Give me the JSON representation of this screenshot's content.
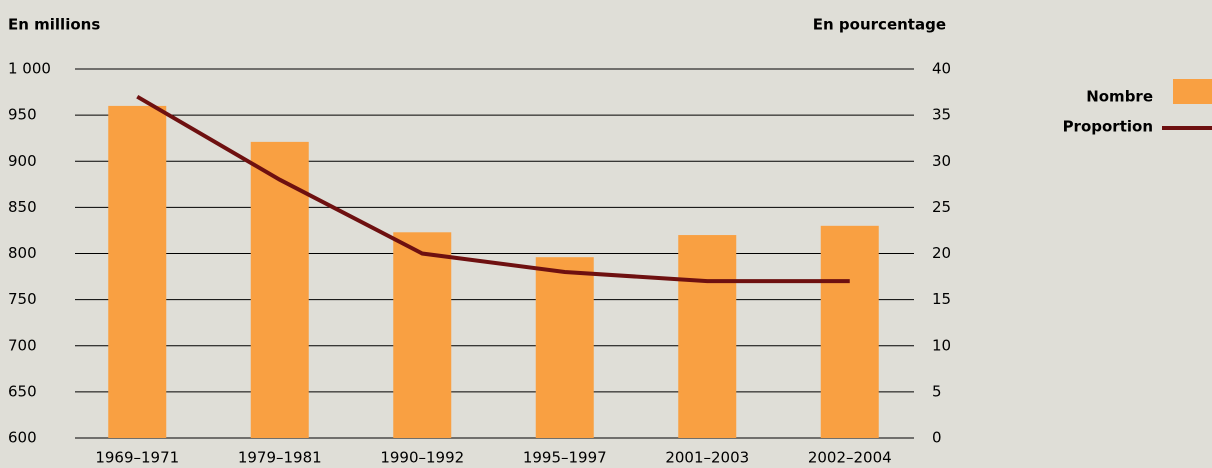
{
  "chart_data": {
    "type": "bar-line",
    "y_label": "En millions",
    "y2_label": "En pourcentage",
    "categories": [
      "1969–1971",
      "1979–1981",
      "1990–1992",
      "1995–1997",
      "2001–2003",
      "2002–2004"
    ],
    "series": [
      {
        "name": "Nombre",
        "type": "bar",
        "color": "#f9a042",
        "values": [
          960,
          921,
          823,
          796,
          820,
          830
        ]
      },
      {
        "name": "Proportion",
        "type": "line",
        "axis": "y2",
        "color": "#6e1010",
        "values": [
          37,
          28,
          20,
          18,
          17,
          17
        ]
      }
    ],
    "ylim": [
      600,
      1000
    ],
    "yticks": [
      600,
      650,
      700,
      750,
      800,
      850,
      900,
      950,
      {
        "value": 1000,
        "label": "1 000"
      }
    ],
    "y2lim": [
      0,
      40
    ],
    "y2ticks": [
      0,
      5,
      10,
      15,
      20,
      25,
      30,
      35,
      40
    ],
    "grid": true,
    "legend": "right"
  }
}
